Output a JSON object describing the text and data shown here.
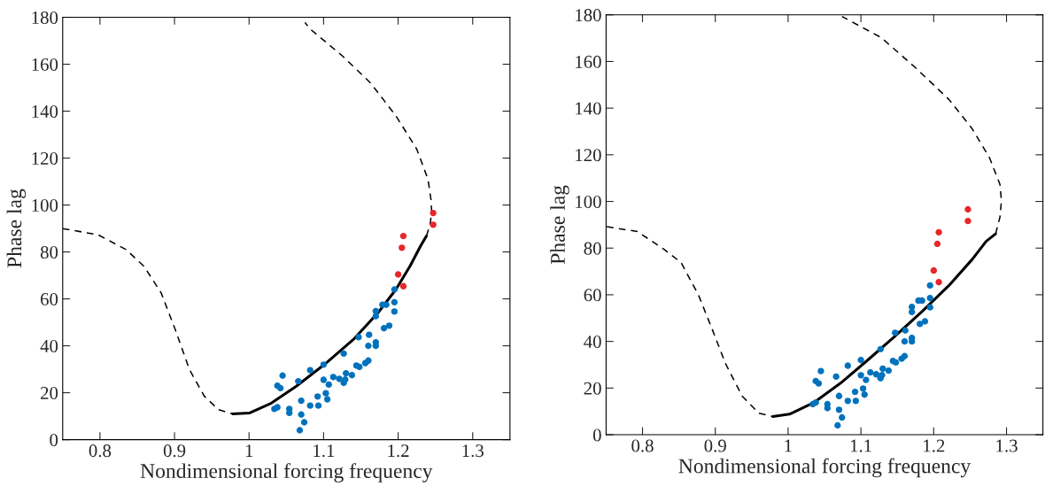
{
  "chart_data": [
    {
      "type": "scatter",
      "xlabel": "Nondimensional forcing frequency",
      "ylabel": "Phase lag",
      "xlim": [
        0.75,
        1.35
      ],
      "ylim": [
        0,
        180
      ],
      "xticks": [
        0.8,
        0.9,
        1,
        1.1,
        1.2,
        1.3
      ],
      "yticks": [
        0,
        20,
        40,
        60,
        80,
        100,
        120,
        140,
        160,
        180
      ],
      "grid": false,
      "series": [
        {
          "type": "line",
          "color": "#000000",
          "line_style": "dashed",
          "marker": "none",
          "x": [
            0.75,
            0.797,
            0.835,
            0.859,
            0.882,
            0.901,
            0.92,
            0.94,
            0.959,
            0.978
          ],
          "values": [
            89.9,
            87.4,
            81,
            73.9,
            62.6,
            46.9,
            29.9,
            18.5,
            12.8,
            11.0
          ]
        },
        {
          "type": "line",
          "color": "#000000",
          "line_style": "solid",
          "marker": "none",
          "x": [
            0.978,
            1.001,
            1.03,
            1.063,
            1.101,
            1.14,
            1.173,
            1.197,
            1.216,
            1.23,
            1.238
          ],
          "values": [
            11.0,
            11.4,
            15.6,
            22.7,
            32.0,
            42.7,
            54.1,
            64.0,
            74.0,
            82.5,
            86.8
          ]
        },
        {
          "type": "line",
          "color": "#000000",
          "line_style": "dashed",
          "marker": "none",
          "x": [
            1.238,
            1.243,
            1.245,
            1.244,
            1.24,
            1.225,
            1.197,
            1.163,
            1.125,
            1.082,
            1.075
          ],
          "values": [
            86.8,
            92,
            97,
            102.4,
            111,
            123.8,
            138,
            152,
            163.6,
            175,
            177.8
          ]
        },
        {
          "color": "#0072bd",
          "marker": "circle",
          "x": [
            1.034,
            1.038,
            1.038,
            1.042,
            1.045,
            1.054,
            1.054,
            1.066,
            1.068,
            1.07,
            1.07,
            1.074,
            1.082,
            1.082,
            1.092,
            1.093,
            1.1,
            1.1,
            1.103,
            1.105,
            1.107,
            1.113,
            1.121,
            1.127,
            1.127,
            1.129,
            1.13,
            1.138,
            1.144,
            1.148,
            1.147,
            1.156,
            1.16,
            1.16,
            1.161,
            1.17,
            1.17,
            1.17,
            1.17,
            1.179,
            1.184,
            1.181,
            1.188,
            1.195,
            1.195,
            1.195
          ],
          "values": [
            13.1,
            13.8,
            23.0,
            22.0,
            27.3,
            13.1,
            11.4,
            24.9,
            4.0,
            16.6,
            10.7,
            7.4,
            29.6,
            14.5,
            18.4,
            14.5,
            32.0,
            25.5,
            19.8,
            17.2,
            23.5,
            26.7,
            25.9,
            36.7,
            24.2,
            25.6,
            28.3,
            27.5,
            31.6,
            31.0,
            43.7,
            32.6,
            33.7,
            40.0,
            44.7,
            41.5,
            40.0,
            54.8,
            52.6,
            57.5,
            57.5,
            47.5,
            48.6,
            64.0,
            58.6,
            54.6
          ]
        },
        {
          "color": "#e8262b",
          "marker": "circle",
          "x": [
            1.2,
            1.207,
            1.205,
            1.207,
            1.247,
            1.247
          ],
          "values": [
            70.4,
            65.4,
            81.8,
            86.8,
            96.6,
            91.6
          ]
        }
      ]
    },
    {
      "type": "scatter",
      "xlabel": "Nondimensional forcing frequency",
      "ylabel": "Phase lag",
      "xlim": [
        0.75,
        1.35
      ],
      "ylim": [
        0,
        180
      ],
      "xticks": [
        0.8,
        0.9,
        1,
        1.1,
        1.2,
        1.3
      ],
      "yticks": [
        0,
        20,
        40,
        60,
        80,
        100,
        120,
        140,
        160,
        180
      ],
      "grid": false,
      "series": [
        {
          "type": "line",
          "color": "#000000",
          "line_style": "dashed",
          "marker": "none",
          "x": [
            0.751,
            0.793,
            0.83,
            0.853,
            0.877,
            0.895,
            0.914,
            0.937,
            0.96,
            0.979
          ],
          "values": [
            89.2,
            87.1,
            79.4,
            73.8,
            59.8,
            45.8,
            30.5,
            16.5,
            9.2,
            7.8
          ]
        },
        {
          "type": "line",
          "color": "#000000",
          "line_style": "solid",
          "marker": "none",
          "x": [
            0.979,
            1.002,
            1.035,
            1.072,
            1.109,
            1.147,
            1.184,
            1.221,
            1.253,
            1.272,
            1.285
          ],
          "values": [
            7.8,
            8.8,
            13.7,
            22.1,
            31.9,
            42.3,
            52.8,
            64.0,
            75.2,
            82.9,
            86.1
          ]
        },
        {
          "type": "line",
          "color": "#000000",
          "line_style": "dashed",
          "marker": "none",
          "x": [
            1.285,
            1.291,
            1.293,
            1.291,
            1.277,
            1.253,
            1.221,
            1.174,
            1.128,
            1.074
          ],
          "values": [
            86.1,
            93.3,
            100.3,
            107.3,
            118.5,
            131.1,
            143.7,
            157.6,
            170.2,
            179.3
          ]
        },
        {
          "color": "#0072bd",
          "marker": "circle",
          "x": [
            1.034,
            1.038,
            1.038,
            1.042,
            1.045,
            1.054,
            1.054,
            1.066,
            1.068,
            1.07,
            1.07,
            1.074,
            1.082,
            1.082,
            1.092,
            1.093,
            1.1,
            1.1,
            1.103,
            1.105,
            1.107,
            1.113,
            1.121,
            1.127,
            1.127,
            1.129,
            1.13,
            1.138,
            1.144,
            1.148,
            1.147,
            1.156,
            1.16,
            1.16,
            1.161,
            1.17,
            1.17,
            1.17,
            1.17,
            1.179,
            1.184,
            1.181,
            1.188,
            1.195,
            1.195,
            1.195
          ],
          "values": [
            13.1,
            13.8,
            23.0,
            22.0,
            27.3,
            13.1,
            11.4,
            24.9,
            4.0,
            16.6,
            10.7,
            7.4,
            29.6,
            14.5,
            18.4,
            14.5,
            32.0,
            25.5,
            19.8,
            17.2,
            23.5,
            26.7,
            25.9,
            36.7,
            24.2,
            25.6,
            28.3,
            27.5,
            31.6,
            31.0,
            43.7,
            32.6,
            33.7,
            40.0,
            44.7,
            41.5,
            40.0,
            54.8,
            52.6,
            57.5,
            57.5,
            47.5,
            48.6,
            64.0,
            58.6,
            54.6
          ]
        },
        {
          "color": "#e8262b",
          "marker": "circle",
          "x": [
            1.2,
            1.207,
            1.205,
            1.207,
            1.247,
            1.247
          ],
          "values": [
            70.4,
            65.4,
            81.8,
            86.8,
            96.6,
            91.6
          ]
        }
      ]
    }
  ]
}
